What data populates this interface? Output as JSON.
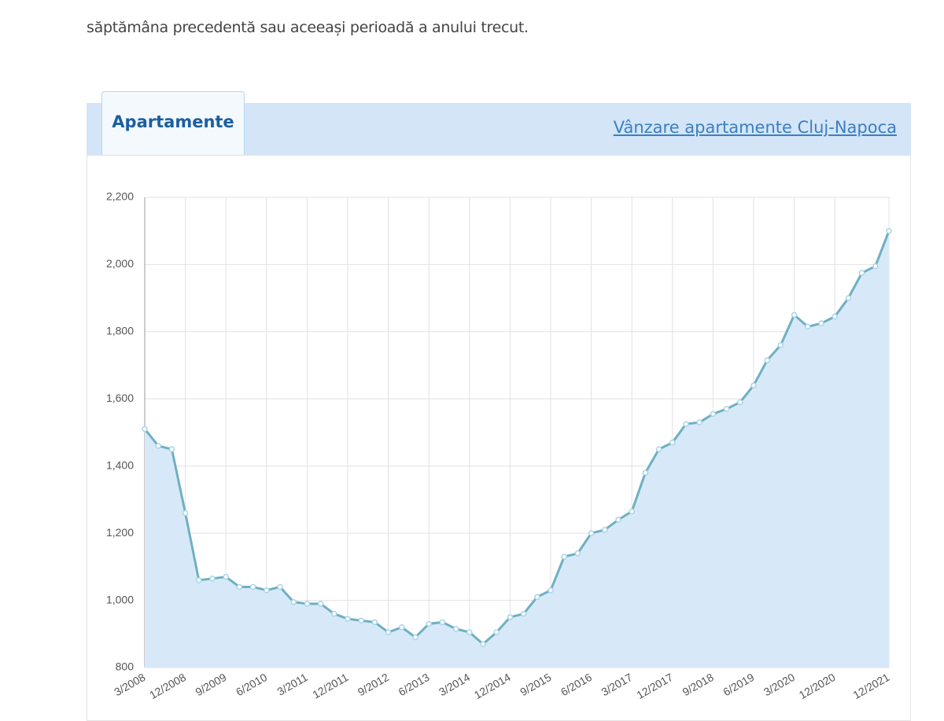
{
  "intro": "săptămâna precedentă sau aceeași perioadă a anului trecut.",
  "tab": "Apartamente",
  "link": "Vânzare apartamente Cluj-Napoca",
  "chart_data": {
    "type": "area",
    "categories": [
      "3/2008",
      null,
      null,
      "12/2008",
      null,
      null,
      "9/2009",
      null,
      null,
      "6/2010",
      null,
      null,
      "3/2011",
      null,
      null,
      "12/2011",
      null,
      null,
      "9/2012",
      null,
      null,
      "6/2013",
      null,
      null,
      "3/2014",
      null,
      null,
      "12/2014",
      null,
      null,
      "9/2015",
      null,
      null,
      "6/2016",
      null,
      null,
      "3/2017",
      null,
      null,
      "12/2017",
      null,
      null,
      "9/2018",
      null,
      null,
      "6/2019",
      null,
      null,
      "3/2020",
      null,
      null,
      "12/2020",
      null,
      null,
      null,
      "12/2021"
    ],
    "values": [
      1510,
      1460,
      1450,
      1260,
      1060,
      1065,
      1070,
      1040,
      1040,
      1030,
      1040,
      995,
      990,
      990,
      960,
      945,
      940,
      935,
      905,
      920,
      890,
      930,
      935,
      915,
      905,
      870,
      905,
      950,
      960,
      1010,
      1030,
      1130,
      1140,
      1200,
      1210,
      1240,
      1265,
      1380,
      1450,
      1470,
      1525,
      1530,
      1555,
      1570,
      1590,
      1640,
      1715,
      1760,
      1850,
      1815,
      1825,
      1845,
      1900,
      1975,
      1995,
      2100
    ],
    "color": "#6fb0c2",
    "fill": "#d7e9f8",
    "ylim": [
      800,
      2200
    ],
    "yticks": [
      800,
      {
        "value": 1000,
        "label": "1,000"
      },
      {
        "value": 1200,
        "label": "1,200"
      },
      {
        "value": 1400,
        "label": "1,400"
      },
      {
        "value": 1600,
        "label": "1,600"
      },
      {
        "value": 1800,
        "label": "1,800"
      },
      {
        "value": 2000,
        "label": "2,000"
      },
      {
        "value": 2200,
        "label": "2,200"
      }
    ],
    "grid": true
  }
}
